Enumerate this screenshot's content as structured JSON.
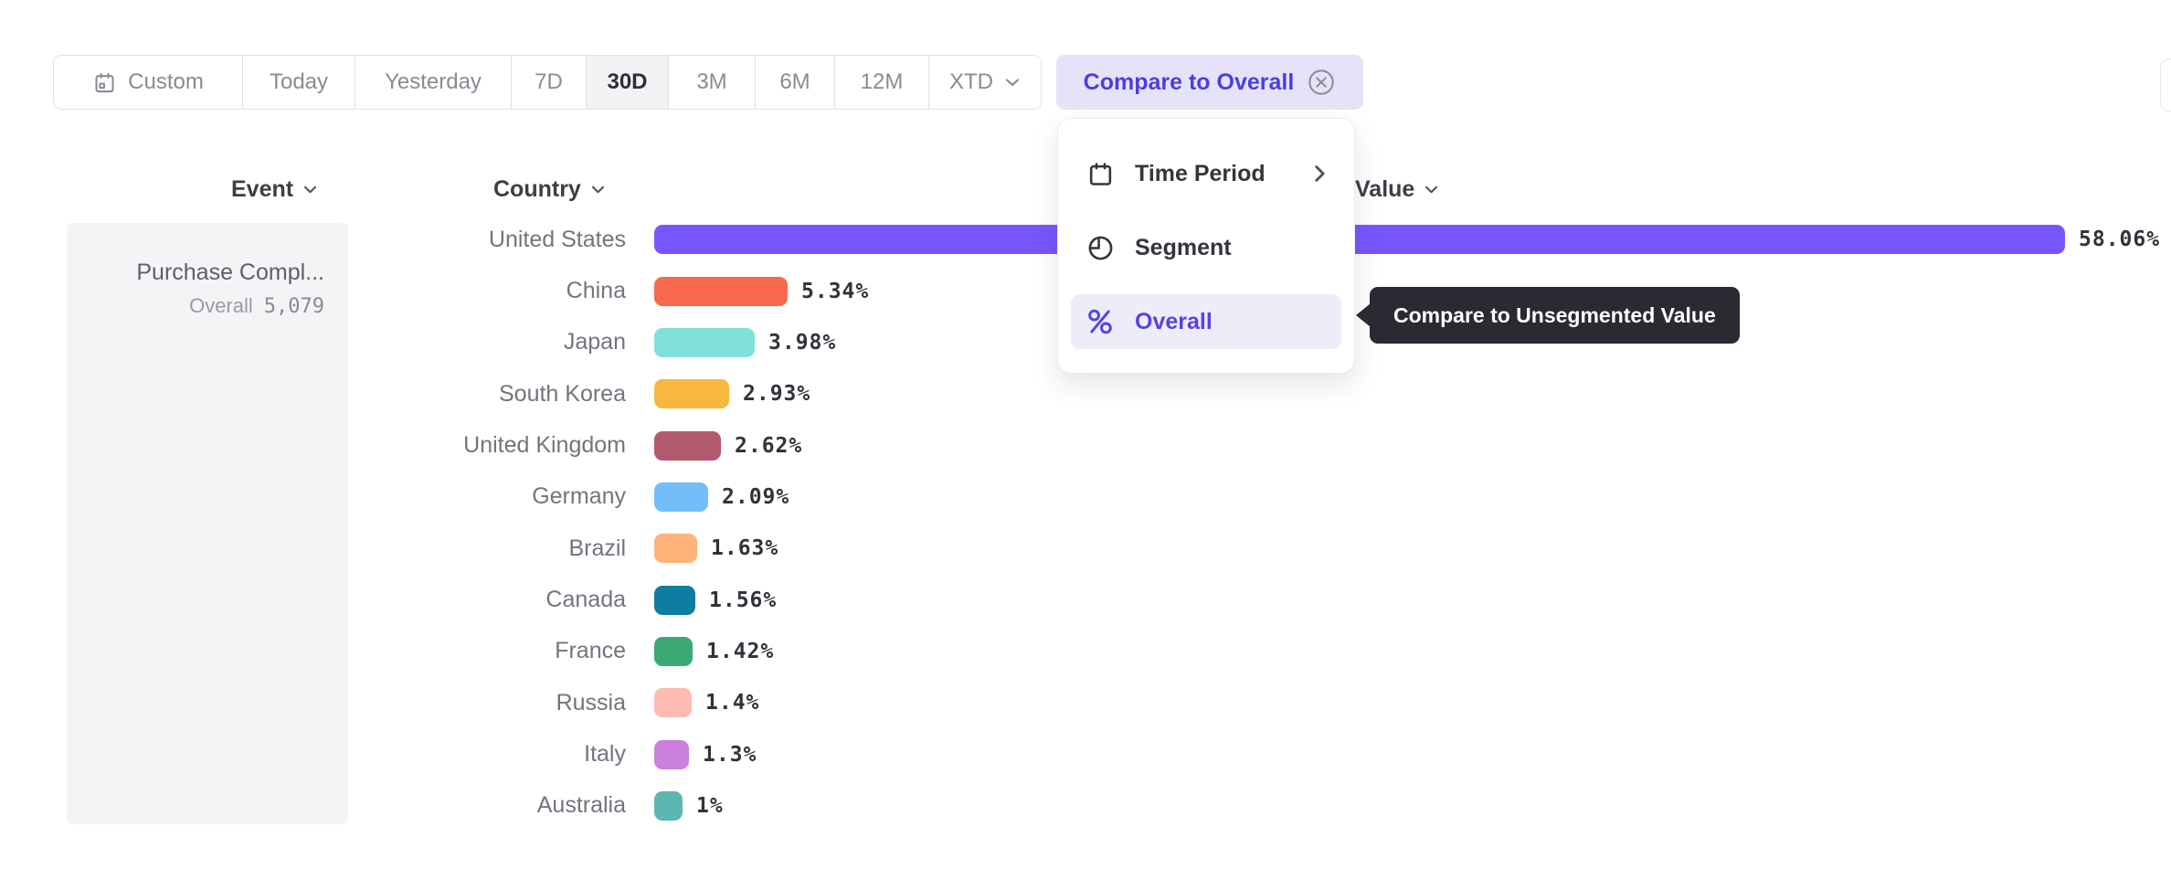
{
  "accent_color": "#7856ff",
  "toolbar": {
    "periods": [
      {
        "label": "Custom"
      },
      {
        "label": "Today"
      },
      {
        "label": "Yesterday"
      },
      {
        "label": "7D"
      },
      {
        "label": "30D"
      },
      {
        "label": "3M"
      },
      {
        "label": "6M"
      },
      {
        "label": "12M"
      },
      {
        "label": "XTD"
      }
    ],
    "active_period": "30D",
    "compare_button": {
      "label": "Compare to Overall"
    }
  },
  "compare_menu": {
    "items": [
      {
        "label": "Time Period",
        "icon": "calendar-icon",
        "has_submenu": true
      },
      {
        "label": "Segment",
        "icon": "segment-icon"
      },
      {
        "label": "Overall",
        "icon": "percent-icon",
        "selected": true
      }
    ]
  },
  "tooltip": {
    "text": "Compare to Unsegmented Value",
    "bg": "#2b2a33"
  },
  "breakdown": {
    "event_header": "Event",
    "country_header": "Country",
    "value_header": "Value",
    "event": {
      "name": "Purchase Compl...",
      "overall_label": "Overall",
      "overall_value": "5,079"
    }
  },
  "chart_data": {
    "type": "bar",
    "orientation": "horizontal",
    "title": "",
    "xlabel": "Value",
    "ylabel": "Country",
    "unit": "%",
    "max_value": 58.06,
    "categories": [
      "United States",
      "China",
      "Japan",
      "South Korea",
      "United Kingdom",
      "Germany",
      "Brazil",
      "Canada",
      "France",
      "Russia",
      "Italy",
      "Australia"
    ],
    "values": [
      58.06,
      5.34,
      3.98,
      2.93,
      2.62,
      2.09,
      1.63,
      1.56,
      1.42,
      1.4,
      1.3,
      1
    ],
    "display_values": [
      "58.06%",
      "5.34%",
      "3.98%",
      "2.93%",
      "2.62%",
      "2.09%",
      "1.63%",
      "1.56%",
      "1.42%",
      "1.4%",
      "1.3%",
      "1%"
    ],
    "colors": [
      "#7856ff",
      "#f8694d",
      "#80e1d9",
      "#f6b83d",
      "#b2596e",
      "#72bef8",
      "#ffb27a",
      "#0d7ea0",
      "#3ba974",
      "#febbb2",
      "#ca80dc",
      "#5bb7af"
    ]
  }
}
